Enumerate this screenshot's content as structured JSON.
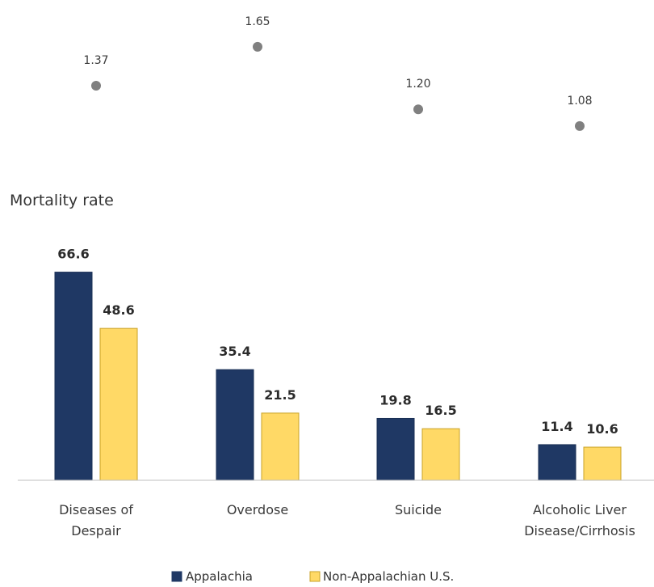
{
  "chart_data": [
    {
      "type": "scatter",
      "categories": [
        "Diseases of Despair",
        "Overdose",
        "Suicide",
        "Alcoholic Liver Disease/Cirrhosis"
      ],
      "values": [
        1.37,
        1.65,
        1.2,
        1.08
      ],
      "value_labels": [
        "1.37",
        "1.65",
        "1.20",
        "1.08"
      ],
      "marker_color": "#808080",
      "title": "",
      "xlabel": "",
      "ylabel": "",
      "grid": false
    },
    {
      "type": "bar",
      "title": "Mortality rate",
      "categories": [
        "Diseases of Despair",
        "Overdose",
        "Suicide",
        "Alcoholic Liver Disease/Cirrhosis"
      ],
      "category_lines": [
        [
          "Diseases of",
          "Despair"
        ],
        [
          "Overdose"
        ],
        [
          "Suicide"
        ],
        [
          "Alcoholic Liver",
          "Disease/Cirrhosis"
        ]
      ],
      "series": [
        {
          "name": "Appalachia",
          "values": [
            66.6,
            35.4,
            19.8,
            11.4
          ],
          "color": "#1f3864"
        },
        {
          "name": "Non-Appalachian U.S.",
          "values": [
            48.6,
            21.5,
            16.5,
            10.6
          ],
          "color": "#ffd966"
        }
      ],
      "xlabel": "",
      "ylabel": "",
      "grid": false,
      "legend_position": "bottom"
    }
  ]
}
